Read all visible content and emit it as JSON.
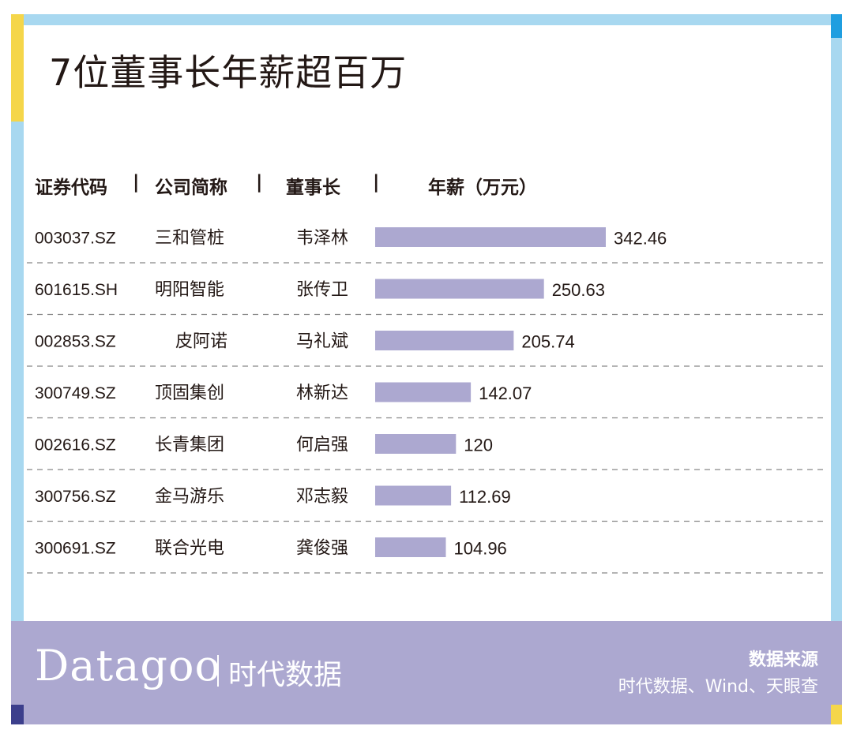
{
  "title": "7位董事长年薪超百万",
  "headers": {
    "code": "证券代码",
    "sep1": "|",
    "company": "公司简称",
    "sep2": "|",
    "chairman": "董事长",
    "sep3": "|",
    "salary": "年薪（万元）"
  },
  "chart_data": {
    "type": "bar",
    "orientation": "horizontal",
    "title": "7位董事长年薪超百万",
    "xlabel": "年薪（万元）",
    "categories": [
      "韦泽林",
      "张传卫",
      "马礼斌",
      "林新达",
      "何启强",
      "邓志毅",
      "龚俊强"
    ],
    "codes": [
      "003037.SZ",
      "601615.SH",
      "002853.SZ",
      "300749.SZ",
      "002616.SZ",
      "300756.SZ",
      "300691.SZ"
    ],
    "companies": [
      "三和管桩",
      "明阳智能",
      "皮阿诺",
      "顶固集创",
      "长青集团",
      "金马游乐",
      "联合光电"
    ],
    "values": [
      342.46,
      250.63,
      205.74,
      142.07,
      120,
      112.69,
      104.96
    ],
    "value_labels": [
      "342.46",
      "250.63",
      "205.74",
      "142.07",
      "120",
      "112.69",
      "104.96"
    ],
    "bar_color": "#aca8d0",
    "grid": false
  },
  "footer": {
    "logo": "Datagoo",
    "logo_cn": "时代数据",
    "source_label": "数据来源",
    "source_text": "时代数据、Wind、天眼查"
  },
  "colors": {
    "frame": "#a8d8f0",
    "accent_yellow": "#f5d64a",
    "accent_blue": "#1f9ee0",
    "accent_navy": "#3c3f8c",
    "footer_bg": "#aca8d0",
    "text": "#231815"
  }
}
